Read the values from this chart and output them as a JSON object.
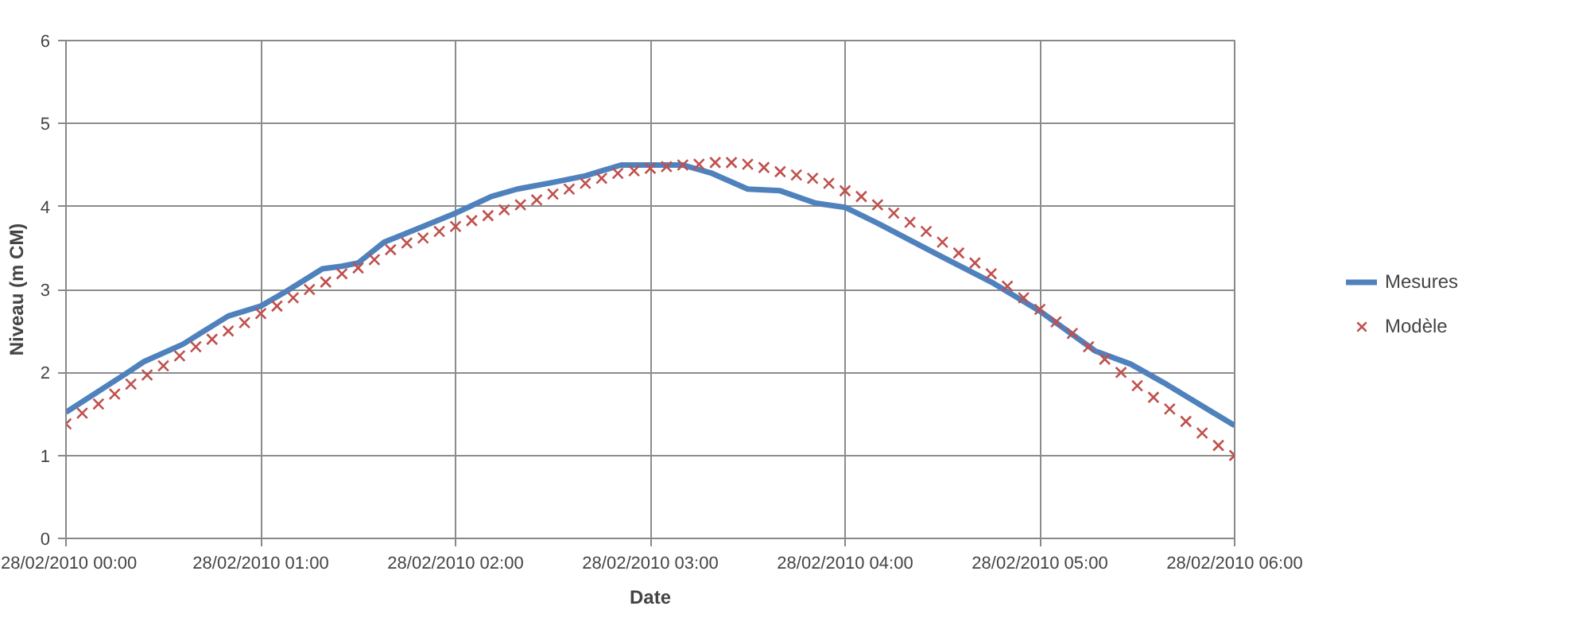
{
  "chart_data": {
    "type": "line",
    "xlabel": "Date",
    "ylabel": "Niveau (m CM)",
    "xlim": [
      "2010-02-28T00:00",
      "2010-02-28T06:00"
    ],
    "ylim": [
      0,
      6
    ],
    "xticks": [
      {
        "value": "2010-02-28T00:00",
        "label": "28/02/2010 00:00"
      },
      {
        "value": "2010-02-28T01:00",
        "label": "28/02/2010 01:00"
      },
      {
        "value": "2010-02-28T02:00",
        "label": "28/02/2010 02:00"
      },
      {
        "value": "2010-02-28T03:00",
        "label": "28/02/2010 03:00"
      },
      {
        "value": "2010-02-28T04:00",
        "label": "28/02/2010 04:00"
      },
      {
        "value": "2010-02-28T05:00",
        "label": "28/02/2010 05:00"
      },
      {
        "value": "2010-02-28T06:00",
        "label": "28/02/2010 06:00"
      }
    ],
    "yticks": [
      0,
      1,
      2,
      3,
      4,
      5,
      6
    ],
    "grid": true,
    "legend": "right",
    "series": [
      {
        "name": "Mesures",
        "color": "#4f81bd",
        "marker": "none",
        "line_style": "solid",
        "x": [
          "2010-02-28T00:00",
          "2010-02-28T00:19",
          "2010-02-28T00:24",
          "2010-02-28T00:36",
          "2010-02-28T00:50",
          "2010-02-28T01:00",
          "2010-02-28T01:08",
          "2010-02-28T01:19",
          "2010-02-28T01:25",
          "2010-02-28T01:30",
          "2010-02-28T01:38",
          "2010-02-28T01:50",
          "2010-02-28T02:00",
          "2010-02-28T02:11",
          "2010-02-28T02:19",
          "2010-02-28T02:30",
          "2010-02-28T02:40",
          "2010-02-28T02:51",
          "2010-02-28T03:00",
          "2010-02-28T03:10",
          "2010-02-28T03:19",
          "2010-02-28T03:30",
          "2010-02-28T03:40",
          "2010-02-28T03:51",
          "2010-02-28T04:00",
          "2010-02-28T04:10",
          "2010-02-28T04:29",
          "2010-02-28T04:45",
          "2010-02-28T05:00",
          "2010-02-28T05:17",
          "2010-02-28T05:28",
          "2010-02-28T05:38",
          "2010-02-28T05:49",
          "2010-02-28T06:00"
        ],
        "values": [
          1.52,
          2.0,
          2.13,
          2.34,
          2.68,
          2.8,
          2.98,
          3.25,
          3.28,
          3.32,
          3.57,
          3.76,
          3.92,
          4.12,
          4.21,
          4.29,
          4.37,
          4.5,
          4.5,
          4.5,
          4.4,
          4.21,
          4.19,
          4.04,
          3.99,
          3.8,
          3.41,
          3.09,
          2.74,
          2.26,
          2.1,
          1.88,
          1.62,
          1.36
        ]
      },
      {
        "name": "Modèle",
        "type": "scatter",
        "color": "#c0504d",
        "marker": "cross",
        "x": [
          "2010-02-28T00:00",
          "2010-02-28T00:05",
          "2010-02-28T00:10",
          "2010-02-28T00:15",
          "2010-02-28T00:20",
          "2010-02-28T00:25",
          "2010-02-28T00:30",
          "2010-02-28T00:35",
          "2010-02-28T00:40",
          "2010-02-28T00:45",
          "2010-02-28T00:50",
          "2010-02-28T00:55",
          "2010-02-28T01:00",
          "2010-02-28T01:05",
          "2010-02-28T01:10",
          "2010-02-28T01:15",
          "2010-02-28T01:20",
          "2010-02-28T01:25",
          "2010-02-28T01:30",
          "2010-02-28T01:35",
          "2010-02-28T01:40",
          "2010-02-28T01:45",
          "2010-02-28T01:50",
          "2010-02-28T01:55",
          "2010-02-28T02:00",
          "2010-02-28T02:05",
          "2010-02-28T02:10",
          "2010-02-28T02:15",
          "2010-02-28T02:20",
          "2010-02-28T02:25",
          "2010-02-28T02:30",
          "2010-02-28T02:35",
          "2010-02-28T02:40",
          "2010-02-28T02:45",
          "2010-02-28T02:50",
          "2010-02-28T02:55",
          "2010-02-28T03:00",
          "2010-02-28T03:05",
          "2010-02-28T03:10",
          "2010-02-28T03:15",
          "2010-02-28T03:20",
          "2010-02-28T03:25",
          "2010-02-28T03:30",
          "2010-02-28T03:35",
          "2010-02-28T03:40",
          "2010-02-28T03:45",
          "2010-02-28T03:50",
          "2010-02-28T03:55",
          "2010-02-28T04:00",
          "2010-02-28T04:05",
          "2010-02-28T04:10",
          "2010-02-28T04:15",
          "2010-02-28T04:20",
          "2010-02-28T04:25",
          "2010-02-28T04:30",
          "2010-02-28T04:35",
          "2010-02-28T04:40",
          "2010-02-28T04:45",
          "2010-02-28T04:50",
          "2010-02-28T04:55",
          "2010-02-28T05:00",
          "2010-02-28T05:05",
          "2010-02-28T05:10",
          "2010-02-28T05:15",
          "2010-02-28T05:20",
          "2010-02-28T05:25",
          "2010-02-28T05:30",
          "2010-02-28T05:35",
          "2010-02-28T05:40",
          "2010-02-28T05:45",
          "2010-02-28T05:50",
          "2010-02-28T05:55",
          "2010-02-28T06:00"
        ],
        "values": [
          1.38,
          1.51,
          1.62,
          1.74,
          1.86,
          1.97,
          2.08,
          2.2,
          2.31,
          2.4,
          2.5,
          2.6,
          2.71,
          2.8,
          2.9,
          3.0,
          3.09,
          3.19,
          3.26,
          3.36,
          3.48,
          3.56,
          3.62,
          3.7,
          3.76,
          3.83,
          3.89,
          3.96,
          4.02,
          4.08,
          4.15,
          4.21,
          4.28,
          4.34,
          4.4,
          4.43,
          4.46,
          4.48,
          4.5,
          4.51,
          4.53,
          4.53,
          4.51,
          4.47,
          4.42,
          4.38,
          4.34,
          4.28,
          4.19,
          4.12,
          4.02,
          3.92,
          3.81,
          3.7,
          3.57,
          3.44,
          3.32,
          3.19,
          3.04,
          2.9,
          2.76,
          2.61,
          2.47,
          2.31,
          2.16,
          2.0,
          1.84,
          1.7,
          1.56,
          1.41,
          1.27,
          1.12,
          1.0
        ]
      }
    ]
  }
}
